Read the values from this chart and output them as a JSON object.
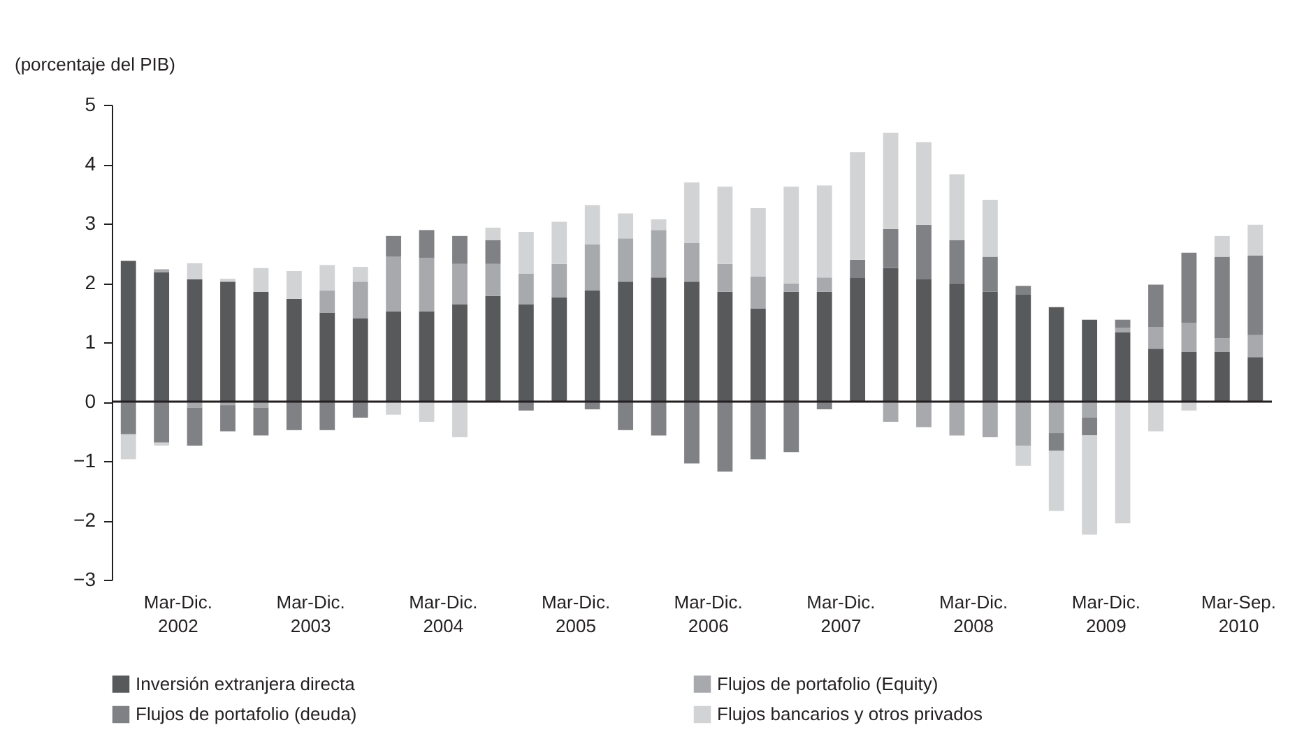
{
  "chart_data": {
    "type": "bar",
    "stacked": true,
    "ylabel": "(porcentaje del PIB)",
    "categories": [
      null,
      "Mar-Dic. 2002",
      null,
      null,
      null,
      "Mar-Dic. 2003",
      null,
      null,
      null,
      "Mar-Dic. 2004",
      null,
      null,
      null,
      "Mar-Dic. 2005",
      null,
      null,
      null,
      "Mar-Dic. 2006",
      null,
      null,
      null,
      "Mar-Dic. 2007",
      null,
      null,
      null,
      "Mar-Dic. 2008",
      null,
      null,
      null,
      "Mar-Dic. 2009",
      null,
      null,
      null,
      "Mar-Sep. 2010",
      null
    ],
    "series": [
      {
        "name": "Inversión extranjera directa",
        "color": "#58595b",
        "values": [
          2.37,
          2.18,
          2.06,
          2.02,
          1.85,
          1.73,
          1.5,
          1.4,
          1.52,
          1.52,
          1.64,
          1.78,
          1.64,
          1.76,
          1.87,
          2.02,
          2.09,
          2.02,
          1.85,
          1.57,
          1.85,
          1.85,
          2.09,
          2.25,
          2.06,
          1.99,
          1.85,
          1.8,
          1.59,
          1.38,
          1.17,
          0.89,
          0.84,
          0.84,
          0.75
        ]
      },
      {
        "name": "Flujos de portafolio (Equity)",
        "color": "#a7a9ac",
        "values": [
          0,
          0.05,
          -0.1,
          -0.06,
          -0.1,
          0,
          0.37,
          0.62,
          0.92,
          0.9,
          0.68,
          0.54,
          0.52,
          0.56,
          0.78,
          0.73,
          0.8,
          0.65,
          0.47,
          0.54,
          0.14,
          0.24,
          0,
          -0.34,
          -0.43,
          -0.57,
          -0.6,
          -0.74,
          -0.53,
          -0.27,
          0.07,
          0.37,
          0.49,
          0.23,
          0.37
        ]
      },
      {
        "name": "Flujos de portafolio (deuda)",
        "color": "#808184",
        "values": [
          -0.55,
          -0.69,
          -0.64,
          -0.44,
          -0.47,
          -0.48,
          -0.48,
          -0.27,
          0.35,
          0.47,
          0.47,
          0.4,
          -0.15,
          null,
          -0.13,
          -0.48,
          -0.57,
          -1.04,
          -1.18,
          -0.97,
          -0.85,
          -0.13,
          0.3,
          0.66,
          0.92,
          0.73,
          0.59,
          0.15,
          -0.3,
          -0.3,
          0.14,
          0.71,
          1.18,
          1.37,
          1.34
        ]
      },
      {
        "name": "Flujos bancarios y otros privados",
        "color": "#d1d3d4",
        "values": [
          -0.42,
          -0.05,
          0.27,
          0.05,
          0.4,
          0.47,
          0.43,
          0.25,
          -0.22,
          -0.34,
          -0.6,
          0.21,
          0.7,
          0.71,
          0.66,
          0.42,
          0.18,
          1.02,
          1.3,
          1.15,
          1.63,
          1.55,
          1.81,
          1.62,
          1.39,
          1.11,
          0.96,
          -0.34,
          -1.01,
          -1.67,
          -2.05,
          -0.5,
          -0.15,
          0.35,
          0.52
        ]
      }
    ],
    "ylim": [
      -3,
      5
    ],
    "yticks": [
      -3,
      -2,
      -1,
      0,
      1,
      2,
      3,
      4,
      5
    ],
    "ref_lines": [
      {
        "axis": "y",
        "value": 0
      }
    ],
    "legend": "bottom"
  }
}
